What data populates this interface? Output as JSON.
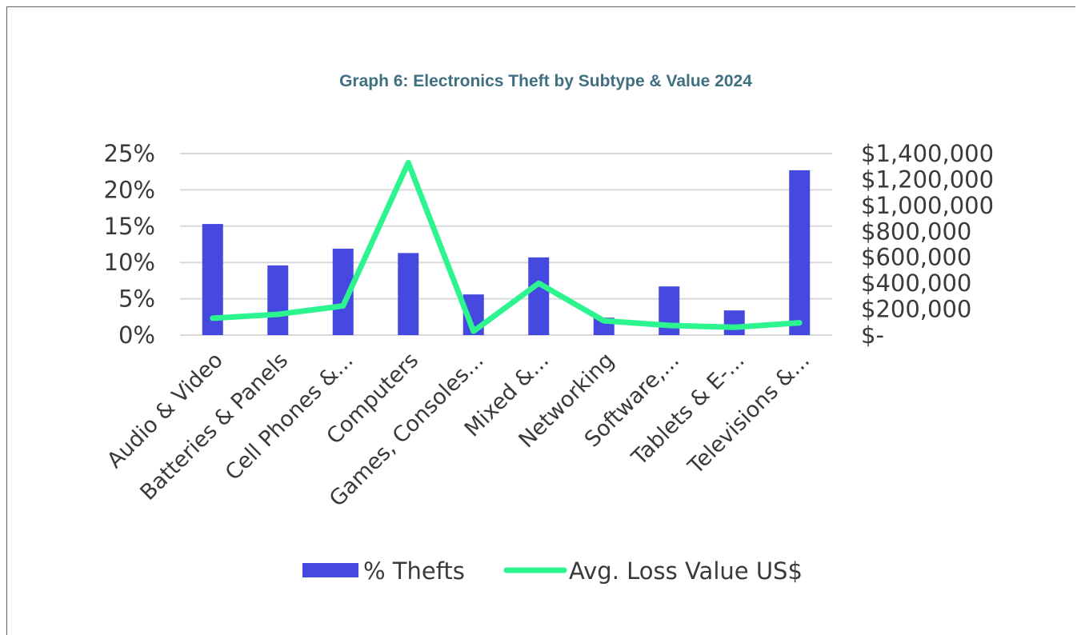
{
  "chart_data": {
    "type": "bar",
    "title": "Graph 6: Electronics Theft by Subtype & Value 2024",
    "categories": [
      "Audio & Video",
      "Batteries & Panels",
      "Cell Phones &...",
      "Computers",
      "Games, Consoles...",
      "Mixed &...",
      "Networking",
      "Software,...",
      "Tablets & E-...",
      "Televisions &..."
    ],
    "series": [
      {
        "name": "% Thefts",
        "type": "bar",
        "axis": "left",
        "color": "#4549e0",
        "values": [
          15.3,
          9.6,
          11.9,
          11.3,
          5.6,
          10.7,
          2.4,
          6.7,
          3.4,
          22.7
        ]
      },
      {
        "name": "Avg. Loss Value US$",
        "type": "line",
        "axis": "right",
        "color": "#2cf58f",
        "values": [
          130000,
          160000,
          225000,
          1330000,
          30000,
          400000,
          110000,
          75000,
          60000,
          95000
        ]
      }
    ],
    "y_left": {
      "ylim": [
        0,
        25
      ],
      "ticks": [
        0,
        5,
        10,
        15,
        20,
        25
      ],
      "tick_labels": [
        "0%",
        "5%",
        "10%",
        "15%",
        "20%",
        "25%"
      ]
    },
    "y_right": {
      "ylim": [
        0,
        1400000
      ],
      "ticks": [
        0,
        200000,
        400000,
        600000,
        800000,
        1000000,
        1200000,
        1400000
      ],
      "tick_labels": [
        "$-",
        "$200,000",
        "$400,000",
        "$600,000",
        "$800,000",
        "$1,000,000",
        "$1,200,000",
        "$1,400,000"
      ]
    },
    "grid": true,
    "legend_position": "bottom",
    "legend": [
      "% Thefts",
      "Avg. Loss Value US$"
    ]
  }
}
